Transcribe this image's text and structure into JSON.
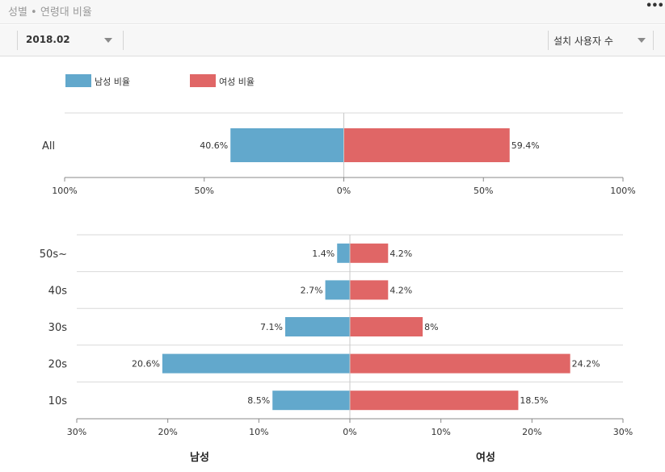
{
  "header": {
    "title": "성별 • 연령대 비율",
    "menu_icon": "more-horizontal-icon"
  },
  "filters": {
    "period": {
      "value": "2018.02",
      "icon": "chevron-down-icon"
    },
    "metric": {
      "value": "설치 사용자 수",
      "icon": "chevron-down-icon"
    }
  },
  "colors": {
    "male": "#62a8cc",
    "female": "#e06666"
  },
  "legend": [
    {
      "label": "남성 비율",
      "color": "#62a8cc"
    },
    {
      "label": "여성 비율",
      "color": "#e06666"
    }
  ],
  "chart_data": [
    {
      "type": "bar",
      "orientation": "horizontal-diverging",
      "categories": [
        "All"
      ],
      "series": [
        {
          "name": "남성 비율",
          "values": [
            40.6
          ],
          "labels": [
            "40.6%"
          ]
        },
        {
          "name": "여성 비율",
          "values": [
            59.4
          ],
          "labels": [
            "59.4%"
          ]
        }
      ],
      "xlim": [
        -100,
        100
      ],
      "xticks": [
        "100%",
        "50%",
        "0%",
        "50%",
        "100%"
      ],
      "grid": true
    },
    {
      "type": "bar",
      "orientation": "horizontal-diverging",
      "categories": [
        "50s~",
        "40s",
        "30s",
        "20s",
        "10s"
      ],
      "series": [
        {
          "name": "남성 비율",
          "values": [
            1.4,
            2.7,
            7.1,
            20.6,
            8.5
          ],
          "labels": [
            "1.4%",
            "2.7%",
            "7.1%",
            "20.6%",
            "8.5%"
          ]
        },
        {
          "name": "여성 비율",
          "values": [
            4.2,
            4.2,
            8,
            24.2,
            18.5
          ],
          "labels": [
            "4.2%",
            "4.2%",
            "8%",
            "24.2%",
            "18.5%"
          ]
        }
      ],
      "xlim": [
        -30,
        30
      ],
      "xticks": [
        "30%",
        "20%",
        "10%",
        "0%",
        "10%",
        "20%",
        "30%"
      ],
      "xlabel_left": "남성",
      "xlabel_right": "여성",
      "grid": true
    }
  ]
}
